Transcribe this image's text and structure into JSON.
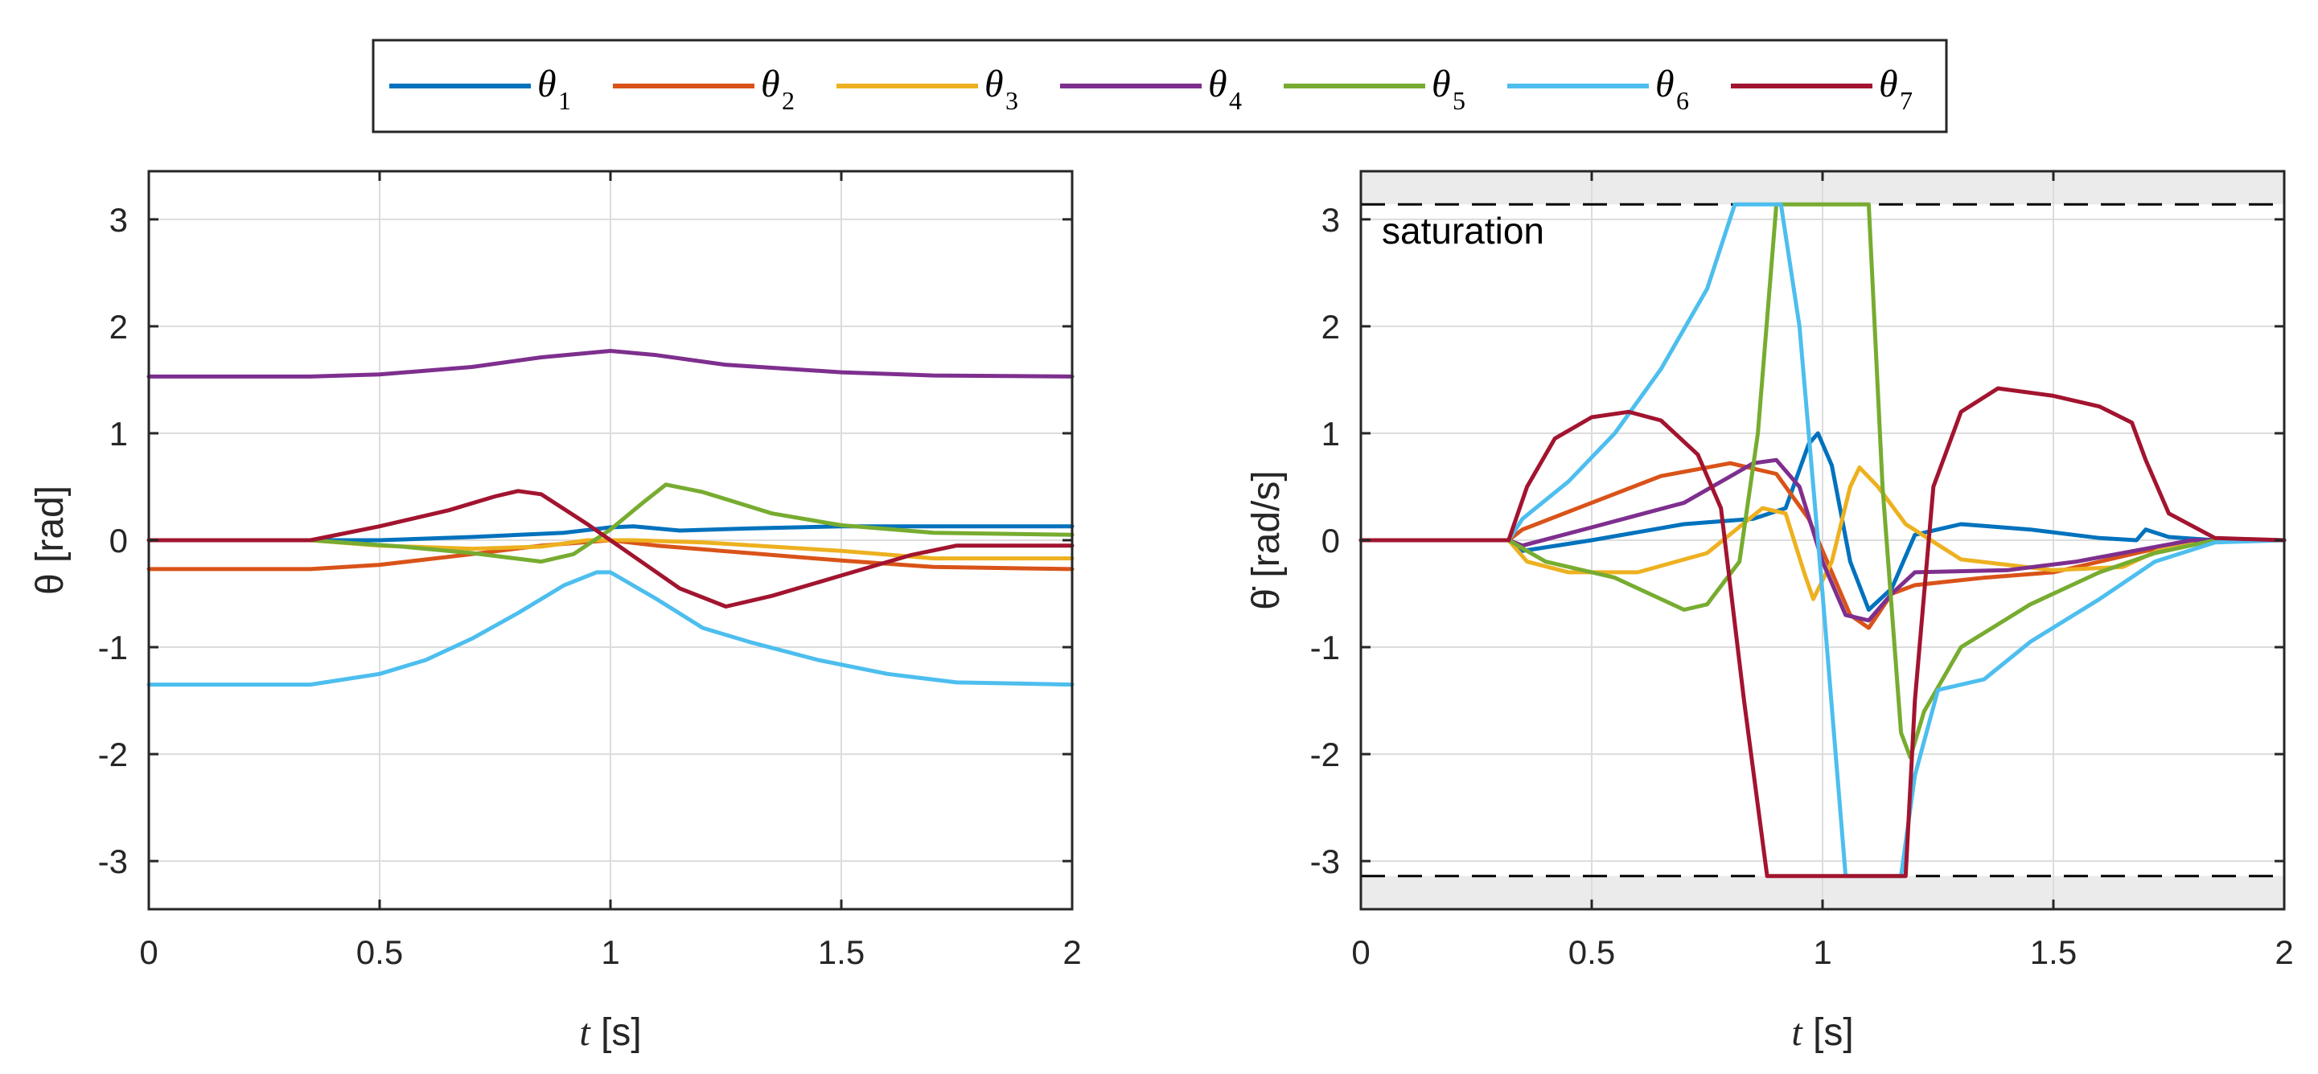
{
  "colors": [
    "#0072BD",
    "#D95319",
    "#EDB120",
    "#7E2F8E",
    "#77AC30",
    "#4DBEEE",
    "#A2142F"
  ],
  "legend": [
    {
      "symbol": "θ",
      "sub": "1"
    },
    {
      "symbol": "θ",
      "sub": "2"
    },
    {
      "symbol": "θ",
      "sub": "3"
    },
    {
      "symbol": "θ",
      "sub": "4"
    },
    {
      "symbol": "θ",
      "sub": "5"
    },
    {
      "symbol": "θ",
      "sub": "6"
    },
    {
      "symbol": "θ",
      "sub": "7"
    }
  ],
  "chart_data": [
    {
      "type": "line",
      "title": "",
      "xlabel_italic": "t",
      "xlabel_rest": " [s]",
      "ylabel": "θ [rad]",
      "xlim": [
        0,
        2
      ],
      "ylim": [
        -3.45,
        3.45
      ],
      "xticks": [
        0,
        0.5,
        1,
        1.5,
        2
      ],
      "xtick_labels": [
        "0",
        "0.5",
        "1",
        "1.5",
        "2"
      ],
      "yticks": [
        -3,
        -2,
        -1,
        0,
        1,
        2,
        3
      ],
      "ytick_labels": [
        "-3",
        "-2",
        "-1",
        "0",
        "1",
        "2",
        "3"
      ],
      "grid": true,
      "series": [
        {
          "name": "θ1",
          "points": [
            [
              0,
              0
            ],
            [
              0.35,
              0
            ],
            [
              0.5,
              0
            ],
            [
              0.7,
              0.03
            ],
            [
              0.9,
              0.07
            ],
            [
              1.0,
              0.12
            ],
            [
              1.05,
              0.13
            ],
            [
              1.15,
              0.09
            ],
            [
              1.3,
              0.11
            ],
            [
              1.5,
              0.13
            ],
            [
              1.7,
              0.13
            ],
            [
              2.0,
              0.13
            ]
          ]
        },
        {
          "name": "θ2",
          "points": [
            [
              0,
              -0.27
            ],
            [
              0.35,
              -0.27
            ],
            [
              0.5,
              -0.23
            ],
            [
              0.7,
              -0.13
            ],
            [
              0.85,
              -0.05
            ],
            [
              1.0,
              0.0
            ],
            [
              1.1,
              -0.05
            ],
            [
              1.3,
              -0.12
            ],
            [
              1.5,
              -0.19
            ],
            [
              1.7,
              -0.25
            ],
            [
              2.0,
              -0.27
            ]
          ]
        },
        {
          "name": "θ3",
          "points": [
            [
              0,
              0
            ],
            [
              0.35,
              0
            ],
            [
              0.5,
              -0.05
            ],
            [
              0.7,
              -0.08
            ],
            [
              0.85,
              -0.06
            ],
            [
              0.95,
              0.0
            ],
            [
              1.05,
              0.0
            ],
            [
              1.2,
              -0.02
            ],
            [
              1.5,
              -0.1
            ],
            [
              1.7,
              -0.17
            ],
            [
              2.0,
              -0.17
            ]
          ]
        },
        {
          "name": "θ4",
          "points": [
            [
              0,
              1.53
            ],
            [
              0.35,
              1.53
            ],
            [
              0.5,
              1.55
            ],
            [
              0.7,
              1.62
            ],
            [
              0.85,
              1.71
            ],
            [
              1.0,
              1.77
            ],
            [
              1.1,
              1.73
            ],
            [
              1.25,
              1.64
            ],
            [
              1.5,
              1.57
            ],
            [
              1.7,
              1.54
            ],
            [
              2.0,
              1.53
            ]
          ]
        },
        {
          "name": "θ5",
          "points": [
            [
              0,
              0
            ],
            [
              0.35,
              0
            ],
            [
              0.55,
              -0.06
            ],
            [
              0.7,
              -0.12
            ],
            [
              0.85,
              -0.2
            ],
            [
              0.92,
              -0.13
            ],
            [
              1.0,
              0.1
            ],
            [
              1.07,
              0.35
            ],
            [
              1.12,
              0.52
            ],
            [
              1.2,
              0.45
            ],
            [
              1.35,
              0.25
            ],
            [
              1.5,
              0.14
            ],
            [
              1.7,
              0.07
            ],
            [
              2.0,
              0.05
            ]
          ]
        },
        {
          "name": "θ6",
          "points": [
            [
              0,
              -1.35
            ],
            [
              0.35,
              -1.35
            ],
            [
              0.5,
              -1.25
            ],
            [
              0.6,
              -1.12
            ],
            [
              0.7,
              -0.92
            ],
            [
              0.8,
              -0.68
            ],
            [
              0.9,
              -0.42
            ],
            [
              0.97,
              -0.3
            ],
            [
              1.0,
              -0.3
            ],
            [
              1.1,
              -0.55
            ],
            [
              1.2,
              -0.82
            ],
            [
              1.3,
              -0.95
            ],
            [
              1.45,
              -1.12
            ],
            [
              1.6,
              -1.25
            ],
            [
              1.75,
              -1.33
            ],
            [
              2.0,
              -1.35
            ]
          ]
        },
        {
          "name": "θ7",
          "points": [
            [
              0,
              0
            ],
            [
              0.35,
              0
            ],
            [
              0.5,
              0.13
            ],
            [
              0.65,
              0.28
            ],
            [
              0.75,
              0.41
            ],
            [
              0.8,
              0.46
            ],
            [
              0.85,
              0.43
            ],
            [
              0.95,
              0.15
            ],
            [
              1.05,
              -0.15
            ],
            [
              1.15,
              -0.45
            ],
            [
              1.25,
              -0.62
            ],
            [
              1.35,
              -0.52
            ],
            [
              1.5,
              -0.33
            ],
            [
              1.65,
              -0.14
            ],
            [
              1.75,
              -0.05
            ],
            [
              2.0,
              -0.05
            ]
          ]
        }
      ]
    },
    {
      "type": "line",
      "title": "",
      "xlabel_italic": "t",
      "xlabel_rest": " [s]",
      "ylabel": "θ̇ [rad/s]",
      "xlim": [
        0,
        2
      ],
      "ylim": [
        -3.45,
        3.45
      ],
      "xticks": [
        0,
        0.5,
        1,
        1.5,
        2
      ],
      "xtick_labels": [
        "0",
        "0.5",
        "1",
        "1.5",
        "2"
      ],
      "yticks": [
        -3,
        -2,
        -1,
        0,
        1,
        2,
        3
      ],
      "ytick_labels": [
        "-3",
        "-2",
        "-1",
        "0",
        "1",
        "2",
        "3"
      ],
      "grid": true,
      "saturation": {
        "upper": 3.14,
        "lower": -3.14,
        "label": "saturation"
      },
      "series": [
        {
          "name": "θ̇1",
          "points": [
            [
              0,
              0
            ],
            [
              0.32,
              0
            ],
            [
              0.35,
              -0.1
            ],
            [
              0.5,
              0.0
            ],
            [
              0.7,
              0.15
            ],
            [
              0.85,
              0.2
            ],
            [
              0.92,
              0.3
            ],
            [
              0.97,
              0.9
            ],
            [
              0.99,
              1.0
            ],
            [
              1.02,
              0.7
            ],
            [
              1.06,
              -0.2
            ],
            [
              1.1,
              -0.65
            ],
            [
              1.15,
              -0.45
            ],
            [
              1.2,
              0.05
            ],
            [
              1.3,
              0.15
            ],
            [
              1.45,
              0.1
            ],
            [
              1.6,
              0.02
            ],
            [
              1.68,
              0.0
            ],
            [
              1.7,
              0.1
            ],
            [
              1.75,
              0.03
            ],
            [
              1.85,
              0
            ],
            [
              2,
              0
            ]
          ]
        },
        {
          "name": "θ̇2",
          "points": [
            [
              0,
              0
            ],
            [
              0.32,
              0
            ],
            [
              0.35,
              0.1
            ],
            [
              0.5,
              0.35
            ],
            [
              0.65,
              0.6
            ],
            [
              0.8,
              0.72
            ],
            [
              0.9,
              0.62
            ],
            [
              0.97,
              0.2
            ],
            [
              1.02,
              -0.3
            ],
            [
              1.06,
              -0.7
            ],
            [
              1.1,
              -0.82
            ],
            [
              1.15,
              -0.5
            ],
            [
              1.2,
              -0.42
            ],
            [
              1.35,
              -0.35
            ],
            [
              1.5,
              -0.3
            ],
            [
              1.65,
              -0.15
            ],
            [
              1.75,
              -0.05
            ],
            [
              1.85,
              0
            ],
            [
              2,
              0
            ]
          ]
        },
        {
          "name": "θ̇3",
          "points": [
            [
              0,
              0
            ],
            [
              0.32,
              0
            ],
            [
              0.36,
              -0.2
            ],
            [
              0.45,
              -0.3
            ],
            [
              0.6,
              -0.3
            ],
            [
              0.75,
              -0.12
            ],
            [
              0.87,
              0.3
            ],
            [
              0.92,
              0.25
            ],
            [
              0.96,
              -0.3
            ],
            [
              0.98,
              -0.55
            ],
            [
              1.02,
              -0.2
            ],
            [
              1.06,
              0.5
            ],
            [
              1.08,
              0.68
            ],
            [
              1.12,
              0.5
            ],
            [
              1.18,
              0.15
            ],
            [
              1.3,
              -0.18
            ],
            [
              1.5,
              -0.28
            ],
            [
              1.65,
              -0.25
            ],
            [
              1.75,
              -0.05
            ],
            [
              1.85,
              0
            ],
            [
              2,
              0
            ]
          ]
        },
        {
          "name": "θ̇4",
          "points": [
            [
              0,
              0
            ],
            [
              0.32,
              0
            ],
            [
              0.35,
              -0.05
            ],
            [
              0.5,
              0.12
            ],
            [
              0.7,
              0.35
            ],
            [
              0.85,
              0.72
            ],
            [
              0.9,
              0.75
            ],
            [
              0.95,
              0.5
            ],
            [
              1.0,
              -0.2
            ],
            [
              1.05,
              -0.7
            ],
            [
              1.1,
              -0.75
            ],
            [
              1.15,
              -0.5
            ],
            [
              1.2,
              -0.3
            ],
            [
              1.4,
              -0.28
            ],
            [
              1.55,
              -0.2
            ],
            [
              1.7,
              -0.08
            ],
            [
              1.8,
              0
            ],
            [
              2,
              0
            ]
          ]
        },
        {
          "name": "θ̇5",
          "points": [
            [
              0,
              0
            ],
            [
              0.32,
              0
            ],
            [
              0.4,
              -0.2
            ],
            [
              0.55,
              -0.35
            ],
            [
              0.7,
              -0.65
            ],
            [
              0.75,
              -0.6
            ],
            [
              0.82,
              -0.2
            ],
            [
              0.86,
              1.0
            ],
            [
              0.9,
              3.14
            ],
            [
              1.1,
              3.14
            ],
            [
              1.13,
              0.5
            ],
            [
              1.17,
              -1.8
            ],
            [
              1.19,
              -2.03
            ],
            [
              1.22,
              -1.6
            ],
            [
              1.3,
              -1.0
            ],
            [
              1.45,
              -0.6
            ],
            [
              1.6,
              -0.3
            ],
            [
              1.72,
              -0.12
            ],
            [
              1.85,
              0
            ],
            [
              2,
              0
            ]
          ]
        },
        {
          "name": "θ̇6",
          "points": [
            [
              0,
              0
            ],
            [
              0.32,
              0
            ],
            [
              0.35,
              0.2
            ],
            [
              0.45,
              0.55
            ],
            [
              0.55,
              1.0
            ],
            [
              0.65,
              1.6
            ],
            [
              0.75,
              2.35
            ],
            [
              0.81,
              3.14
            ],
            [
              0.91,
              3.14
            ],
            [
              0.95,
              2.0
            ],
            [
              1.0,
              -0.5
            ],
            [
              1.05,
              -3.14
            ],
            [
              1.17,
              -3.14
            ],
            [
              1.2,
              -2.2
            ],
            [
              1.25,
              -1.4
            ],
            [
              1.35,
              -1.3
            ],
            [
              1.45,
              -0.95
            ],
            [
              1.6,
              -0.55
            ],
            [
              1.72,
              -0.2
            ],
            [
              1.85,
              -0.02
            ],
            [
              2,
              0
            ]
          ]
        },
        {
          "name": "θ̇7",
          "points": [
            [
              0,
              0
            ],
            [
              0.32,
              0
            ],
            [
              0.36,
              0.5
            ],
            [
              0.42,
              0.95
            ],
            [
              0.5,
              1.15
            ],
            [
              0.58,
              1.2
            ],
            [
              0.65,
              1.12
            ],
            [
              0.73,
              0.8
            ],
            [
              0.78,
              0.3
            ],
            [
              0.83,
              -1.5
            ],
            [
              0.88,
              -3.14
            ],
            [
              1.18,
              -3.14
            ],
            [
              1.2,
              -1.5
            ],
            [
              1.24,
              0.5
            ],
            [
              1.3,
              1.2
            ],
            [
              1.38,
              1.42
            ],
            [
              1.5,
              1.35
            ],
            [
              1.6,
              1.25
            ],
            [
              1.67,
              1.1
            ],
            [
              1.7,
              0.75
            ],
            [
              1.75,
              0.25
            ],
            [
              1.85,
              0.02
            ],
            [
              2,
              0
            ]
          ]
        }
      ]
    }
  ]
}
